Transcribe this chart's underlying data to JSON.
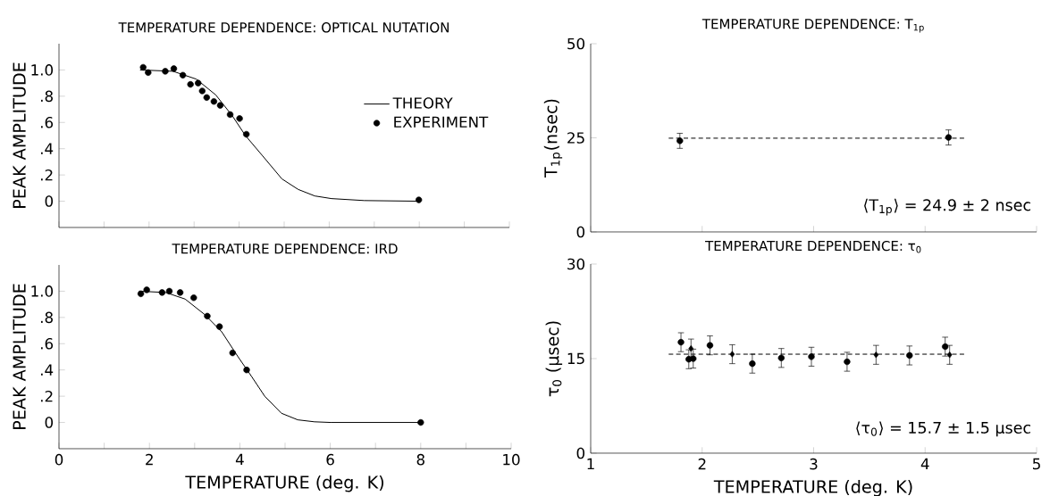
{
  "chart_data": [
    {
      "type": "scatter",
      "title": "TEMPERATURE DEPENDENCE: OPTICAL NUTATION",
      "ylabel": "PEAK AMPLITUDE",
      "xlim": [
        0,
        10
      ],
      "ylim": [
        -0.2,
        1.2
      ],
      "xticks": [
        0,
        1,
        2,
        3,
        4,
        5,
        6,
        7,
        8,
        9,
        10
      ],
      "yticks": [
        0,
        {
          "value": 0.2,
          "label": ".2"
        },
        {
          "value": 0.4,
          "label": ".4"
        },
        {
          "value": 0.6,
          "label": ".6"
        },
        {
          "value": 0.8,
          "label": ".8"
        },
        {
          "value": 1.0,
          "label": "1.0"
        }
      ],
      "tick_labels": "y",
      "legend": "right",
      "series": [
        {
          "name": "THEORY",
          "type": "line",
          "color": "#000000",
          "x": [
            1.8,
            2.53,
            3.05,
            3.48,
            3.85,
            4.14,
            4.51,
            4.95,
            5.31,
            5.68,
            6.05,
            6.78,
            8.0
          ],
          "values": [
            1.0,
            0.99,
            0.93,
            0.81,
            0.65,
            0.5,
            0.35,
            0.17,
            0.09,
            0.04,
            0.02,
            0.005,
            0.0
          ]
        },
        {
          "name": "EXPERIMENT",
          "marker": "circle",
          "color": "#000000",
          "x": [
            1.87,
            1.98,
            2.36,
            2.55,
            2.75,
            2.92,
            3.09,
            3.18,
            3.28,
            3.44,
            3.58,
            3.8,
            4.01,
            4.16,
            7.99
          ],
          "values": [
            1.02,
            0.98,
            0.99,
            1.01,
            0.96,
            0.89,
            0.9,
            0.84,
            0.79,
            0.76,
            0.73,
            0.66,
            0.63,
            0.51,
            0.01
          ]
        }
      ]
    },
    {
      "type": "scatter",
      "title": "TEMPERATURE DEPENDENCE: IRD",
      "ylabel": "PEAK AMPLITUDE",
      "xlabel": "TEMPERATURE (deg. K)",
      "xlim": [
        0,
        10
      ],
      "ylim": [
        -0.2,
        1.2
      ],
      "xticks": [
        0,
        {
          "value": 1,
          "label": null
        },
        2,
        {
          "value": 3,
          "label": null
        },
        4,
        {
          "value": 5,
          "label": null
        },
        6,
        {
          "value": 7,
          "label": null
        },
        8,
        {
          "value": 9,
          "label": null
        },
        10
      ],
      "yticks": [
        0,
        {
          "value": 0.2,
          "label": ".2"
        },
        {
          "value": 0.4,
          "label": ".4"
        },
        {
          "value": 0.6,
          "label": ".6"
        },
        {
          "value": 0.8,
          "label": ".8"
        },
        {
          "value": 1.0,
          "label": "1.0"
        }
      ],
      "series": [
        {
          "type": "line",
          "color": "#000000",
          "x": [
            1.77,
            2.36,
            2.79,
            3.23,
            3.6,
            3.96,
            4.26,
            4.55,
            4.92,
            5.28,
            5.65,
            6.01,
            8.0
          ],
          "values": [
            1.0,
            0.99,
            0.94,
            0.82,
            0.69,
            0.5,
            0.35,
            0.2,
            0.07,
            0.02,
            0.005,
            0.0,
            0.0
          ]
        },
        {
          "marker": "circle",
          "color": "#000000",
          "x": [
            1.81,
            1.94,
            2.28,
            2.44,
            2.68,
            2.98,
            3.28,
            3.55,
            3.84,
            4.15,
            8.0
          ],
          "values": [
            0.98,
            1.01,
            0.99,
            1.0,
            0.99,
            0.95,
            0.81,
            0.73,
            0.53,
            0.4,
            0.0
          ]
        }
      ]
    },
    {
      "type": "scatter",
      "title": "TEMPERATURE DEPENDENCE: T$_{1p}$",
      "ylabel": "T$_{1p}$(nsec)",
      "xlim": [
        1,
        5
      ],
      "ylim": [
        0,
        50
      ],
      "xticks": [
        1,
        2,
        3,
        4,
        5
      ],
      "yticks": [
        0,
        25,
        50
      ],
      "tick_labels": "y",
      "annotations": [
        "⟨T$_{1p}$⟩ = 24.9 ± 2 nsec"
      ],
      "series": [
        {
          "type": "line",
          "line_style": "dashed",
          "color": "#000000",
          "x": [
            1.7,
            4.35
          ],
          "values": [
            24.9,
            24.9
          ]
        },
        {
          "marker": "circle",
          "color": "#000000",
          "x": [
            1.8,
            4.21
          ],
          "values": [
            24.2,
            25.1
          ],
          "errors": [
            2,
            2
          ]
        }
      ]
    },
    {
      "type": "scatter",
      "title": "TEMPERATURE DEPENDENCE: τ$_{0}$",
      "ylabel": "τ$_{0}$ (μsec)",
      "xlabel": "TEMPERATURE (deg. K)",
      "xlim": [
        1,
        5
      ],
      "ylim": [
        0,
        30
      ],
      "xticks": [
        1,
        2,
        3,
        4,
        5
      ],
      "yticks": [
        0,
        15,
        30
      ],
      "annotations": [
        "⟨τ$_{0}$⟩ = 15.7 ± 1.5 μsec"
      ],
      "series": [
        {
          "type": "line",
          "line_style": "dashed",
          "color": "#000000",
          "x": [
            1.7,
            4.35
          ],
          "values": [
            15.7,
            15.7
          ]
        },
        {
          "marker": "circle",
          "color": "#000000",
          "x": [
            1.81,
            1.88,
            1.92,
            2.07,
            2.45,
            2.71,
            2.98,
            3.3,
            3.86,
            4.18
          ],
          "values": [
            17.6,
            14.9,
            15.0,
            17.1,
            14.2,
            15.1,
            15.3,
            14.5,
            15.5,
            16.9
          ],
          "errors": [
            1.5,
            1.5,
            1.5,
            1.5,
            1.5,
            1.5,
            1.5,
            1.5,
            1.5,
            1.5
          ]
        },
        {
          "marker": "diamond",
          "color": "#000000",
          "x": [
            1.9,
            2.27,
            3.56,
            4.22
          ],
          "values": [
            16.6,
            15.7,
            15.6,
            15.6
          ],
          "errors": [
            1.5,
            1.5,
            1.5,
            1.5
          ]
        }
      ]
    }
  ]
}
